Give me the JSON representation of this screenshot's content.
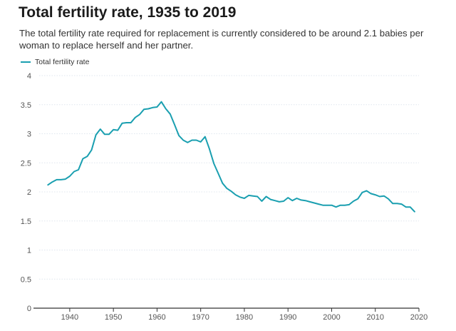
{
  "title": "Total fertility rate, 1935 to 2019",
  "subtitle": "The total fertility rate required for replacement is currently considered to be around 2.1 babies per woman to replace herself and her partner.",
  "colors": {
    "line": "#1a9fb0",
    "grid": "#dfe6ee",
    "axis": "#333333"
  },
  "chart_data": {
    "type": "line",
    "title": "Total fertility rate, 1935 to 2019",
    "xlabel": "",
    "ylabel": "",
    "xlim": [
      1933,
      2020
    ],
    "ylim": [
      0,
      4
    ],
    "grid": true,
    "legend_position": "top-left",
    "x_ticks": [
      1940,
      1950,
      1960,
      1970,
      1980,
      1990,
      2000,
      2010,
      2020
    ],
    "y_ticks": [
      0,
      0.5,
      1,
      1.5,
      2,
      2.5,
      3,
      3.5,
      4
    ],
    "y_tick_labels": [
      "0",
      "0.5",
      "1",
      "1.5",
      "2",
      "2.5",
      "3",
      "3.5",
      "4"
    ],
    "series": [
      {
        "name": "Total fertility rate",
        "x": [
          1935,
          1936,
          1937,
          1938,
          1939,
          1940,
          1941,
          1942,
          1943,
          1944,
          1945,
          1946,
          1947,
          1948,
          1949,
          1950,
          1951,
          1952,
          1953,
          1954,
          1955,
          1956,
          1957,
          1958,
          1959,
          1960,
          1961,
          1962,
          1963,
          1964,
          1965,
          1966,
          1967,
          1968,
          1969,
          1970,
          1971,
          1972,
          1973,
          1974,
          1975,
          1976,
          1977,
          1978,
          1979,
          1980,
          1981,
          1982,
          1983,
          1984,
          1985,
          1986,
          1987,
          1988,
          1989,
          1990,
          1991,
          1992,
          1993,
          1994,
          1995,
          1996,
          1997,
          1998,
          1999,
          2000,
          2001,
          2002,
          2003,
          2004,
          2005,
          2006,
          2007,
          2008,
          2009,
          2010,
          2011,
          2012,
          2013,
          2014,
          2015,
          2016,
          2017,
          2018,
          2019
        ],
        "values": [
          2.12,
          2.17,
          2.21,
          2.21,
          2.22,
          2.27,
          2.35,
          2.38,
          2.57,
          2.61,
          2.72,
          2.98,
          3.08,
          2.99,
          2.99,
          3.07,
          3.06,
          3.18,
          3.19,
          3.19,
          3.28,
          3.33,
          3.42,
          3.43,
          3.45,
          3.46,
          3.55,
          3.43,
          3.34,
          3.16,
          2.97,
          2.89,
          2.85,
          2.89,
          2.89,
          2.86,
          2.95,
          2.74,
          2.49,
          2.32,
          2.15,
          2.06,
          2.01,
          1.95,
          1.91,
          1.89,
          1.94,
          1.93,
          1.92,
          1.84,
          1.92,
          1.87,
          1.85,
          1.83,
          1.84,
          1.9,
          1.85,
          1.89,
          1.86,
          1.85,
          1.83,
          1.81,
          1.79,
          1.77,
          1.77,
          1.77,
          1.74,
          1.77,
          1.77,
          1.78,
          1.84,
          1.88,
          1.99,
          2.02,
          1.97,
          1.95,
          1.92,
          1.93,
          1.88,
          1.8,
          1.8,
          1.79,
          1.74,
          1.74,
          1.66
        ]
      }
    ]
  }
}
